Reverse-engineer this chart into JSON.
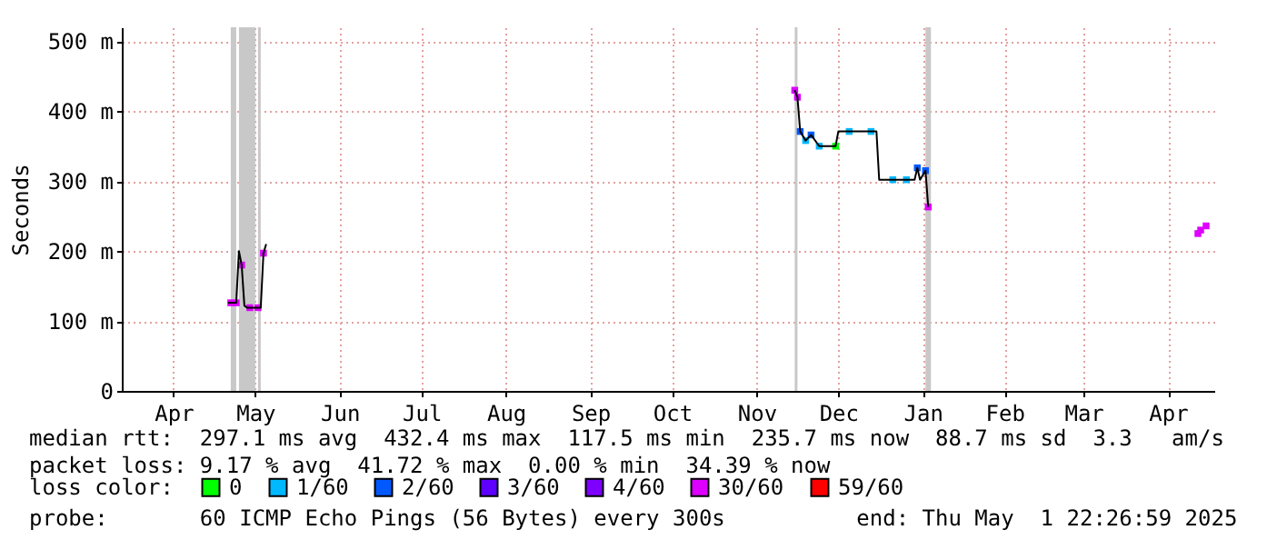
{
  "chart_data": {
    "type": "line",
    "ylabel": "Seconds",
    "legend_title": "loss color:",
    "legend": "bottom",
    "grid": true,
    "xlim": [
      "2024-03-28",
      "2025-05-03"
    ],
    "ylim": [
      0,
      520
    ],
    "xticks": [
      {
        "value": "2024-04-16",
        "label": "Apr"
      },
      {
        "value": "2024-05-16",
        "label": "May"
      },
      {
        "value": "2024-06-16",
        "label": "Jun"
      },
      {
        "value": "2024-07-16",
        "label": "Jul"
      },
      {
        "value": "2024-08-16",
        "label": "Aug"
      },
      {
        "value": "2024-09-16",
        "label": "Sep"
      },
      {
        "value": "2024-10-16",
        "label": "Oct"
      },
      {
        "value": "2024-11-16",
        "label": "Nov"
      },
      {
        "value": "2024-12-16",
        "label": "Dec"
      },
      {
        "value": "2025-01-16",
        "label": "Jan"
      },
      {
        "value": "2025-02-15",
        "label": "Feb"
      },
      {
        "value": "2025-03-16",
        "label": "Mar"
      },
      {
        "value": "2025-04-16",
        "label": "Apr"
      }
    ],
    "yticks": [
      0,
      {
        "value": 100,
        "label": "100 m"
      },
      {
        "value": 200,
        "label": "200 m"
      },
      {
        "value": 300,
        "label": "300 m"
      },
      {
        "value": 400,
        "label": "400 m"
      },
      {
        "value": 500,
        "label": "500 m"
      }
    ],
    "bands": [
      {
        "axis": "x",
        "from": "2024-05-07",
        "to": "2024-05-09",
        "color": "#c8c8c8"
      },
      {
        "axis": "x",
        "from": "2024-05-10",
        "to": "2024-05-16",
        "color": "#c8c8c8"
      },
      {
        "axis": "x",
        "from": "2024-05-17",
        "to": "2024-05-18",
        "color": "#c8c8c8"
      },
      {
        "axis": "x",
        "from": "2024-11-30",
        "to": "2024-12-01",
        "color": "#c8c8c8"
      },
      {
        "axis": "x",
        "from": "2025-01-17",
        "to": "2025-01-19",
        "color": "#c8c8c8"
      }
    ],
    "series": [
      {
        "type": "line",
        "color": "#000000",
        "x": [
          "2024-05-06",
          "2024-05-09",
          "2024-05-10",
          "2024-05-11",
          "2024-05-12",
          "2024-05-13",
          "2024-05-18",
          "2024-05-19",
          "2024-05-20",
          "2024-06-15",
          "2024-11-30",
          "2024-12-01",
          "2024-12-02",
          "2024-12-04",
          "2024-12-06",
          "2024-12-09",
          "2024-12-15",
          "2024-12-16",
          "2024-12-30",
          "2024-12-31",
          "2025-01-13",
          "2025-01-14",
          "2025-01-15",
          "2025-01-17",
          "2025-01-18"
        ],
        "values": [
          126,
          126,
          200,
          180,
          122,
          119,
          119,
          197,
          210,
          null,
          430,
          420,
          371,
          358,
          366,
          350,
          350,
          371,
          371,
          302,
          302,
          319,
          302,
          315,
          263
        ]
      },
      {
        "type": "scatter",
        "marker": "square",
        "name": "0",
        "color": "#00ff00",
        "x": [
          "2024-12-15"
        ],
        "values": [
          350
        ]
      },
      {
        "type": "scatter",
        "marker": "square",
        "name": "1/60",
        "color": "#00b8ff",
        "x": [
          "2024-12-04",
          "2024-12-09",
          "2024-12-20",
          "2024-12-28",
          "2025-01-05",
          "2025-01-10"
        ],
        "values": [
          358,
          350,
          371,
          371,
          302,
          302
        ]
      },
      {
        "type": "scatter",
        "marker": "square",
        "name": "2/60",
        "color": "#0059ff",
        "x": [
          "2024-12-02",
          "2024-12-06",
          "2025-01-14",
          "2025-01-17"
        ],
        "values": [
          371,
          366,
          319,
          315
        ]
      },
      {
        "type": "scatter",
        "marker": "square",
        "name": "3/60",
        "color": "#5e00ff"
      },
      {
        "type": "scatter",
        "marker": "square",
        "name": "4/60",
        "color": "#7e00ff"
      },
      {
        "type": "scatter",
        "marker": "square",
        "name": "30/60",
        "color": "#dd00ff",
        "x": [
          "2024-05-07",
          "2024-05-09",
          "2024-05-11",
          "2024-05-14",
          "2024-05-17",
          "2024-05-19",
          "2024-11-30",
          "2024-12-01",
          "2025-01-18",
          "2025-04-27",
          "2025-04-28",
          "2025-04-30"
        ],
        "values": [
          126,
          126,
          180,
          119,
          119,
          197,
          430,
          420,
          263,
          225,
          230,
          236
        ]
      },
      {
        "type": "scatter",
        "marker": "square",
        "name": "59/60",
        "color": "#ff0000"
      }
    ],
    "annotations": [
      "median rtt:  297.1 ms avg  432.4 ms max  117.5 ms min  235.7 ms now  88.7 ms sd  3.3   am/s",
      "packet loss: 9.17 % avg  41.72 % max  0.00 % min  34.39 % now",
      "probe:       60 ICMP Echo Pings (56 Bytes) every 300s          end: Thu May  1 22:26:59 2025"
    ]
  }
}
